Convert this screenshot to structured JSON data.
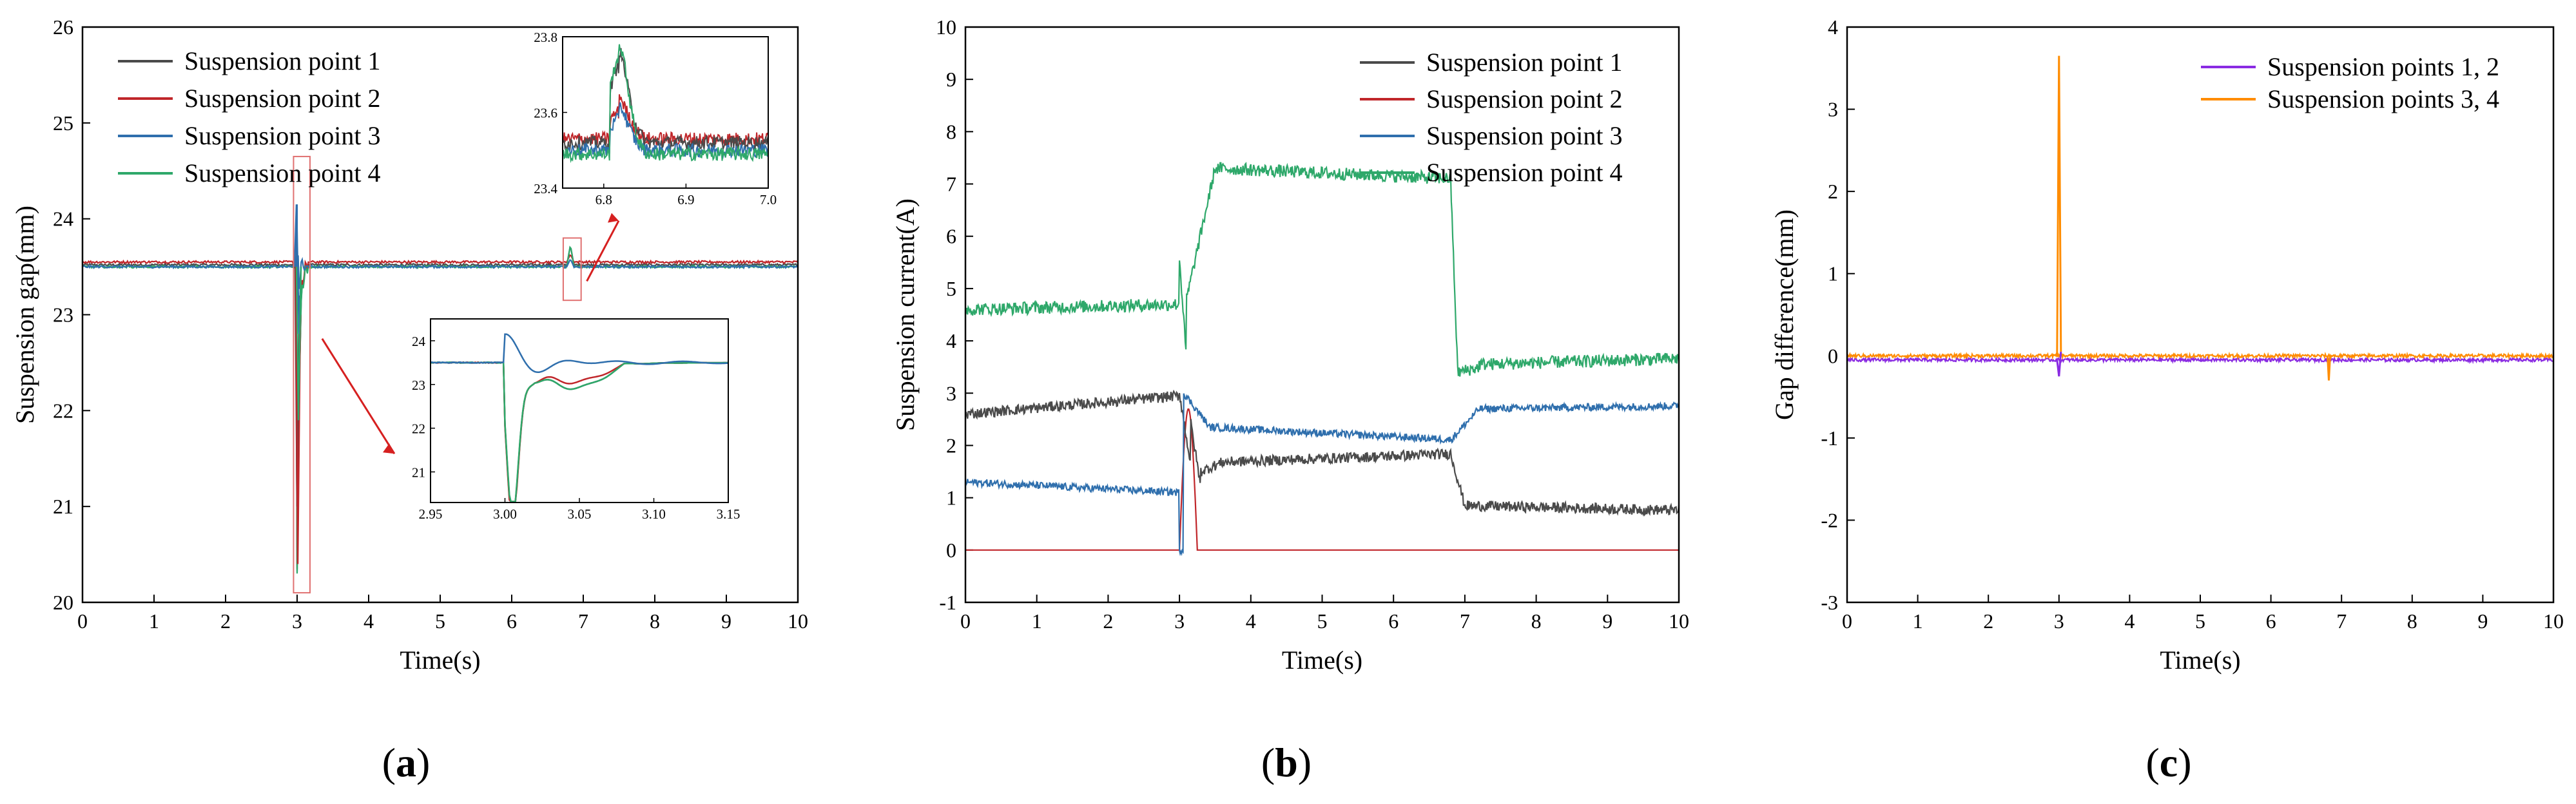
{
  "panels": [
    {
      "id": "a",
      "label_open": "(",
      "label_letter": "a",
      "label_close": ")"
    },
    {
      "id": "b",
      "label_open": "(",
      "label_letter": "b",
      "label_close": ")"
    },
    {
      "id": "c",
      "label_open": "(",
      "label_letter": "c",
      "label_close": ")"
    }
  ],
  "chart_data": [
    {
      "id": "a",
      "type": "line",
      "xlabel": "Time(s)",
      "ylabel": "Suspension gap(mm)",
      "xlim": [
        0,
        10
      ],
      "ylim": [
        20,
        26
      ],
      "xticks": [
        "0",
        "1",
        "2",
        "3",
        "4",
        "5",
        "6",
        "7",
        "8",
        "9",
        "10"
      ],
      "yticks": [
        "20",
        "21",
        "22",
        "23",
        "24",
        "25",
        "26"
      ],
      "legend_position": "top-left",
      "series": [
        {
          "name": "Suspension point 1",
          "color": "#4a4a4a",
          "baseline": 23.52,
          "events": "dip to 20.3 at t=3.0, peak 23.73 at t=6.82"
        },
        {
          "name": "Suspension point 2",
          "color": "#c0262a",
          "baseline": 23.55,
          "events": "dip to 20.3 at t=3.0, peak 23.6 at t=6.82"
        },
        {
          "name": "Suspension point 3",
          "color": "#2f6fad",
          "baseline": 23.5,
          "events": "peak 24.15 at t=3.0, peak 23.58 at t=6.82"
        },
        {
          "name": "Suspension point 4",
          "color": "#2ea86a",
          "baseline": 23.5,
          "events": "dip to 20.3 at t=3.0, peak 23.75 at t=6.82"
        }
      ],
      "insets": [
        {
          "name": "zoom-3s",
          "xlim": [
            2.95,
            3.15
          ],
          "ylim": [
            20.3,
            24.5
          ],
          "xticks": [
            "2.95",
            "3.00",
            "3.05",
            "3.10",
            "3.15"
          ],
          "yticks": [
            "21",
            "22",
            "23",
            "24"
          ]
        },
        {
          "name": "zoom-6.8s",
          "xlim": [
            6.75,
            7.0
          ],
          "ylim": [
            23.4,
            23.8
          ],
          "xticks": [
            "6.8",
            "6.9",
            "7.0"
          ],
          "yticks": [
            "23.4",
            "23.6",
            "23.8"
          ]
        }
      ]
    },
    {
      "id": "b",
      "type": "line",
      "xlabel": "Time(s)",
      "ylabel": "Suspension current(A)",
      "xlim": [
        0,
        10
      ],
      "ylim": [
        -1,
        10
      ],
      "xticks": [
        "0",
        "1",
        "2",
        "3",
        "4",
        "5",
        "6",
        "7",
        "8",
        "9",
        "10"
      ],
      "yticks": [
        "-1",
        "0",
        "1",
        "2",
        "3",
        "4",
        "5",
        "6",
        "7",
        "8",
        "9",
        "10"
      ],
      "legend_position": "top-right",
      "series": [
        {
          "name": "Suspension point 1",
          "color": "#4a4a4a",
          "levels": [
            [
              0,
              2.6
            ],
            [
              3.0,
              3.0
            ],
            [
              3.3,
              1.6
            ],
            [
              6.8,
              1.85
            ],
            [
              7.0,
              0.85
            ],
            [
              10,
              0.75
            ]
          ]
        },
        {
          "name": "Suspension point 2",
          "color": "#c0262a",
          "levels": [
            [
              0,
              0
            ],
            [
              3.0,
              2.8
            ],
            [
              3.2,
              0
            ],
            [
              10,
              0
            ]
          ]
        },
        {
          "name": "Suspension point 3",
          "color": "#2f6fad",
          "levels": [
            [
              0,
              1.3
            ],
            [
              3.0,
              1.1
            ],
            [
              3.3,
              2.4
            ],
            [
              6.8,
              2.1
            ],
            [
              7.0,
              2.7
            ],
            [
              10,
              2.75
            ]
          ]
        },
        {
          "name": "Suspension point 4",
          "color": "#2ea86a",
          "levels": [
            [
              0,
              4.6
            ],
            [
              3.0,
              4.7
            ],
            [
              3.4,
              7.3
            ],
            [
              6.8,
              7.1
            ],
            [
              6.9,
              3.4
            ],
            [
              10,
              3.65
            ]
          ]
        }
      ]
    },
    {
      "id": "c",
      "type": "line",
      "xlabel": "Time(s)",
      "ylabel": "Gap difference(mm)",
      "xlim": [
        0,
        10
      ],
      "ylim": [
        -3,
        4
      ],
      "xticks": [
        "0",
        "1",
        "2",
        "3",
        "4",
        "5",
        "6",
        "7",
        "8",
        "9",
        "10"
      ],
      "yticks": [
        "-3",
        "-2",
        "-1",
        "0",
        "1",
        "2",
        "3",
        "4"
      ],
      "legend_position": "top-right",
      "series": [
        {
          "name": "Suspension points 1, 2",
          "color": "#8a2be2",
          "baseline": -0.05,
          "events": "spike to -0.25 at t=3.0"
        },
        {
          "name": "Suspension points 3, 4",
          "color": "#ff8c00",
          "baseline": 0.0,
          "events": "spike to 3.65 at t=3.0, dip to -0.3 at t=6.82"
        }
      ]
    }
  ]
}
